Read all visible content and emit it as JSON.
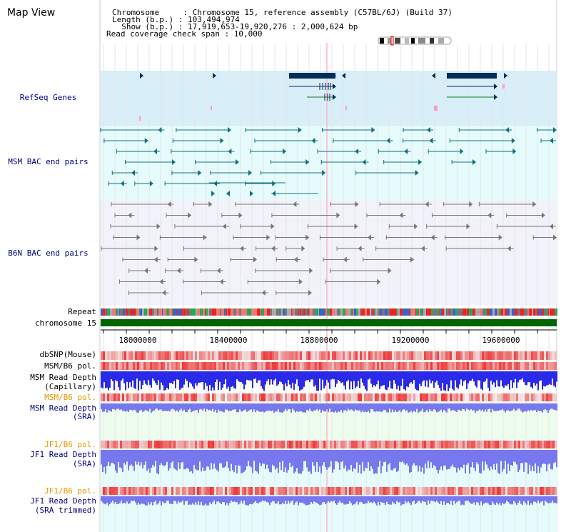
{
  "panel_title": "Map View",
  "header": {
    "line1": "Chromosome     : Chromosome 15, reference assembly (C57BL/6J) (Build 37)",
    "line2": "Length (b.p.) : 103,494,974",
    "line3": "  Show (b.p.) : 17,919,653-19,920,276 : 2,000,624 bp",
    "line4": "Read coverage check span : 10,000"
  },
  "tracks": {
    "refseq": "RefSeq Genes",
    "msm_bac": "MSM BAC end pairs",
    "b6n_bac": "B6N BAC end pairs",
    "repeat": "Repeat",
    "chromosome": "chromosome 15",
    "dbsnp": "dbSNP(Mouse)",
    "msm_b6_pol": "MSM/B6 pol.",
    "msm_cap_1": "MSM Read Depth",
    "msm_cap_2": "(Capillary)",
    "msm_b6_pol2": "MSM/B6 pol.",
    "msm_sra_1": "MSM Read Depth",
    "msm_sra_2": "(SRA)",
    "jf1_b6_pol": "JF1/B6 pol.",
    "jf1_sra_1": "JF1 Read Depth",
    "jf1_sra_2": "(SRA)",
    "jf1_b6_pol2": "JF1/B6 pol.",
    "jf1_trim_1": "JF1 Read Depth",
    "jf1_trim_2": "(SRA trimmed)"
  },
  "axis": {
    "ticks": [
      "18000000",
      "18400000",
      "18800000",
      "19200000",
      "19600000"
    ]
  },
  "colors": {
    "refseq_bg": "#d8eef8",
    "msm_bg": "#e6fbfb",
    "b6n_bg": "#f2f2fa",
    "gene": "#002d5a",
    "msm_feature": "#11707f",
    "b6n_feature": "#777777",
    "chromosome_bar": "#006400",
    "label_navy": "#000080",
    "label_orange": "#e69500",
    "snp": "#ee3333",
    "depth_blue": "#2a2ae8",
    "depth_light": "#7777ee"
  }
}
